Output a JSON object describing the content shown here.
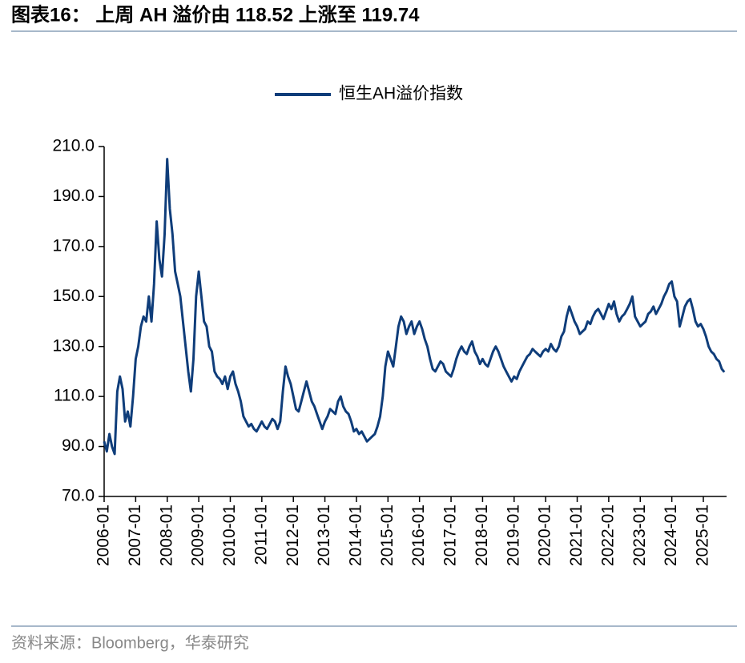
{
  "chart_data": {
    "type": "line",
    "title": "图表16： 上周 AH 溢价由 118.52 上涨至 119.74",
    "source": "资料来源：Bloomberg，华泰研究",
    "x": [
      "2006-01",
      "2006-02",
      "2006-03",
      "2006-04",
      "2006-05",
      "2006-06",
      "2006-07",
      "2006-08",
      "2006-09",
      "2006-10",
      "2006-11",
      "2006-12",
      "2007-01",
      "2007-02",
      "2007-03",
      "2007-04",
      "2007-05",
      "2007-06",
      "2007-07",
      "2007-08",
      "2007-09",
      "2007-10",
      "2007-11",
      "2007-12",
      "2008-01",
      "2008-02",
      "2008-03",
      "2008-04",
      "2008-05",
      "2008-06",
      "2008-07",
      "2008-08",
      "2008-09",
      "2008-10",
      "2008-11",
      "2008-12",
      "2009-01",
      "2009-02",
      "2009-03",
      "2009-04",
      "2009-05",
      "2009-06",
      "2009-07",
      "2009-08",
      "2009-09",
      "2009-10",
      "2009-11",
      "2009-12",
      "2010-01",
      "2010-02",
      "2010-03",
      "2010-04",
      "2010-05",
      "2010-06",
      "2010-07",
      "2010-08",
      "2010-09",
      "2010-10",
      "2010-11",
      "2010-12",
      "2011-01",
      "2011-02",
      "2011-03",
      "2011-04",
      "2011-05",
      "2011-06",
      "2011-07",
      "2011-08",
      "2011-09",
      "2011-10",
      "2011-11",
      "2011-12",
      "2012-01",
      "2012-02",
      "2012-03",
      "2012-04",
      "2012-05",
      "2012-06",
      "2012-07",
      "2012-08",
      "2012-09",
      "2012-10",
      "2012-11",
      "2012-12",
      "2013-01",
      "2013-02",
      "2013-03",
      "2013-04",
      "2013-05",
      "2013-06",
      "2013-07",
      "2013-08",
      "2013-09",
      "2013-10",
      "2013-11",
      "2013-12",
      "2014-01",
      "2014-02",
      "2014-03",
      "2014-04",
      "2014-05",
      "2014-06",
      "2014-07",
      "2014-08",
      "2014-09",
      "2014-10",
      "2014-11",
      "2014-12",
      "2015-01",
      "2015-02",
      "2015-03",
      "2015-04",
      "2015-05",
      "2015-06",
      "2015-07",
      "2015-08",
      "2015-09",
      "2015-10",
      "2015-11",
      "2015-12",
      "2016-01",
      "2016-02",
      "2016-03",
      "2016-04",
      "2016-05",
      "2016-06",
      "2016-07",
      "2016-08",
      "2016-09",
      "2016-10",
      "2016-11",
      "2016-12",
      "2017-01",
      "2017-02",
      "2017-03",
      "2017-04",
      "2017-05",
      "2017-06",
      "2017-07",
      "2017-08",
      "2017-09",
      "2017-10",
      "2017-11",
      "2017-12",
      "2018-01",
      "2018-02",
      "2018-03",
      "2018-04",
      "2018-05",
      "2018-06",
      "2018-07",
      "2018-08",
      "2018-09",
      "2018-10",
      "2018-11",
      "2018-12",
      "2019-01",
      "2019-02",
      "2019-03",
      "2019-04",
      "2019-05",
      "2019-06",
      "2019-07",
      "2019-08",
      "2019-09",
      "2019-10",
      "2019-11",
      "2019-12",
      "2020-01",
      "2020-02",
      "2020-03",
      "2020-04",
      "2020-05",
      "2020-06",
      "2020-07",
      "2020-08",
      "2020-09",
      "2020-10",
      "2020-11",
      "2020-12",
      "2021-01",
      "2021-02",
      "2021-03",
      "2021-04",
      "2021-05",
      "2021-06",
      "2021-07",
      "2021-08",
      "2021-09",
      "2021-10",
      "2021-11",
      "2021-12",
      "2022-01",
      "2022-02",
      "2022-03",
      "2022-04",
      "2022-05",
      "2022-06",
      "2022-07",
      "2022-08",
      "2022-09",
      "2022-10",
      "2022-11",
      "2022-12",
      "2023-01",
      "2023-02",
      "2023-03",
      "2023-04",
      "2023-05",
      "2023-06",
      "2023-07",
      "2023-08",
      "2023-09",
      "2023-10",
      "2023-11",
      "2023-12",
      "2024-01",
      "2024-02",
      "2024-03",
      "2024-04",
      "2024-05",
      "2024-06",
      "2024-07",
      "2024-08",
      "2024-09",
      "2024-10",
      "2024-11",
      "2024-12",
      "2025-01",
      "2025-02",
      "2025-03",
      "2025-04",
      "2025-05",
      "2025-06",
      "2025-07",
      "2025-08",
      "2025-09"
    ],
    "series": [
      {
        "name": "恒生AH溢价指数",
        "color": "#0f3d7a",
        "values": [
          92,
          88,
          95,
          90,
          87,
          112,
          118,
          113,
          100,
          104,
          98,
          110,
          125,
          130,
          138,
          142,
          140,
          150,
          140,
          155,
          180,
          165,
          158,
          175,
          205,
          185,
          175,
          160,
          155,
          150,
          140,
          130,
          120,
          112,
          125,
          150,
          160,
          150,
          140,
          138,
          130,
          128,
          120,
          118,
          117,
          115,
          118,
          113,
          118,
          120,
          115,
          112,
          108,
          102,
          100,
          98,
          99,
          97,
          96,
          98,
          100,
          98,
          97,
          99,
          101,
          100,
          97,
          100,
          112,
          122,
          118,
          115,
          110,
          105,
          104,
          108,
          112,
          116,
          112,
          108,
          106,
          103,
          100,
          97,
          100,
          102,
          105,
          104,
          103,
          108,
          110,
          106,
          104,
          103,
          100,
          96,
          97,
          95,
          96,
          94,
          92,
          93,
          94,
          95,
          98,
          102,
          110,
          122,
          128,
          125,
          122,
          130,
          138,
          142,
          140,
          135,
          138,
          140,
          135,
          138,
          140,
          137,
          133,
          130,
          125,
          121,
          120,
          122,
          124,
          123,
          120,
          119,
          118,
          121,
          125,
          128,
          130,
          128,
          127,
          130,
          132,
          128,
          126,
          123,
          125,
          123,
          122,
          125,
          128,
          130,
          128,
          125,
          122,
          120,
          118,
          116,
          118,
          117,
          120,
          122,
          124,
          126,
          127,
          129,
          128,
          127,
          126,
          128,
          129,
          128,
          131,
          129,
          128,
          130,
          134,
          136,
          142,
          146,
          143,
          140,
          138,
          135,
          136,
          137,
          140,
          139,
          142,
          144,
          145,
          143,
          141,
          144,
          147,
          145,
          148,
          143,
          140,
          142,
          143,
          145,
          147,
          150,
          142,
          140,
          138,
          139,
          140,
          143,
          144,
          146,
          143,
          145,
          147,
          150,
          152,
          155,
          156,
          150,
          148,
          138,
          142,
          146,
          148,
          149,
          145,
          140,
          138,
          139,
          137,
          134,
          130,
          128,
          127,
          125,
          124,
          121,
          119.74
        ]
      }
    ],
    "ylim": [
      70,
      210
    ],
    "yticks": [
      {
        "value": 70,
        "label": "70.0"
      },
      {
        "value": 90,
        "label": "90.0"
      },
      {
        "value": 110,
        "label": "110.0"
      },
      {
        "value": 130,
        "label": "130.0"
      },
      {
        "value": 150,
        "label": "150.0"
      },
      {
        "value": 170,
        "label": "170.0"
      },
      {
        "value": 190,
        "label": "190.0"
      },
      {
        "value": 210,
        "label": "210.0"
      }
    ],
    "xticks": [
      "2006-01",
      "2007-01",
      "2008-01",
      "2009-01",
      "2010-01",
      "2011-01",
      "2012-01",
      "2013-01",
      "2014-01",
      "2015-01",
      "2016-01",
      "2017-01",
      "2018-01",
      "2019-01",
      "2020-01",
      "2021-01",
      "2022-01",
      "2023-01",
      "2024-01",
      "2025-01"
    ],
    "legend": "top"
  }
}
